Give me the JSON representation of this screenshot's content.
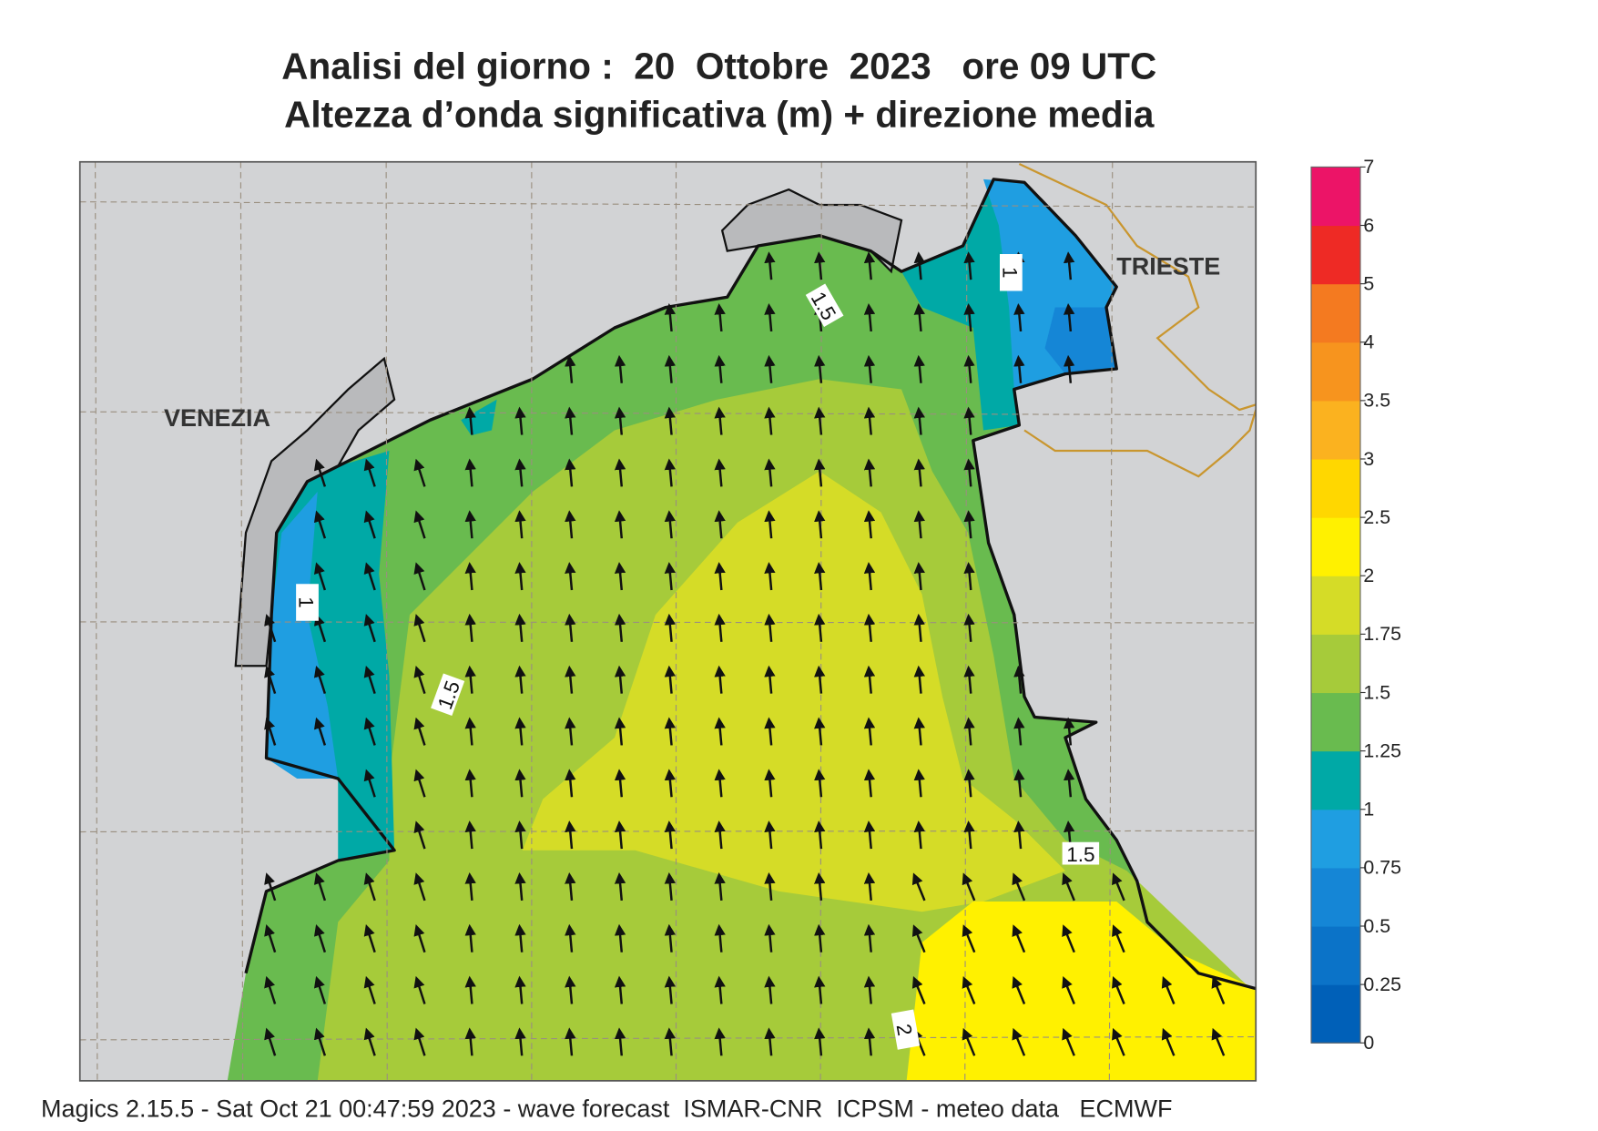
{
  "header": {
    "title": "Analisi del giorno :  20  Ottobre  2023   ore 09 UTC",
    "subtitle": "Altezza d’onda significativa (m) + direzione media"
  },
  "map": {
    "places": [
      "VENEZIA",
      "TRIESTE"
    ],
    "contour_labels": [
      1,
      1.5,
      1.5,
      1,
      1.5,
      2
    ]
  },
  "colorbar": {
    "levels": [
      0,
      0.25,
      0.5,
      0.75,
      1,
      1.25,
      1.5,
      1.75,
      2,
      2.5,
      3,
      3.5,
      4,
      5,
      6,
      7
    ],
    "colors": [
      "#0060b8",
      "#0b73c8",
      "#1586d6",
      "#1f9ee1",
      "#00a9a6",
      "#69bb4f",
      "#a6cb3a",
      "#d5dc27",
      "#fff100",
      "#ffd700",
      "#fbb21f",
      "#f7941e",
      "#f47a20",
      "#ee2a25",
      "#ec1467"
    ]
  },
  "footer": "Magics 2.15.5 - Sat Oct 21 00:47:59 2023 - wave forecast  ISMAR-CNR  ICPSM - meteo data   ECMWF"
}
